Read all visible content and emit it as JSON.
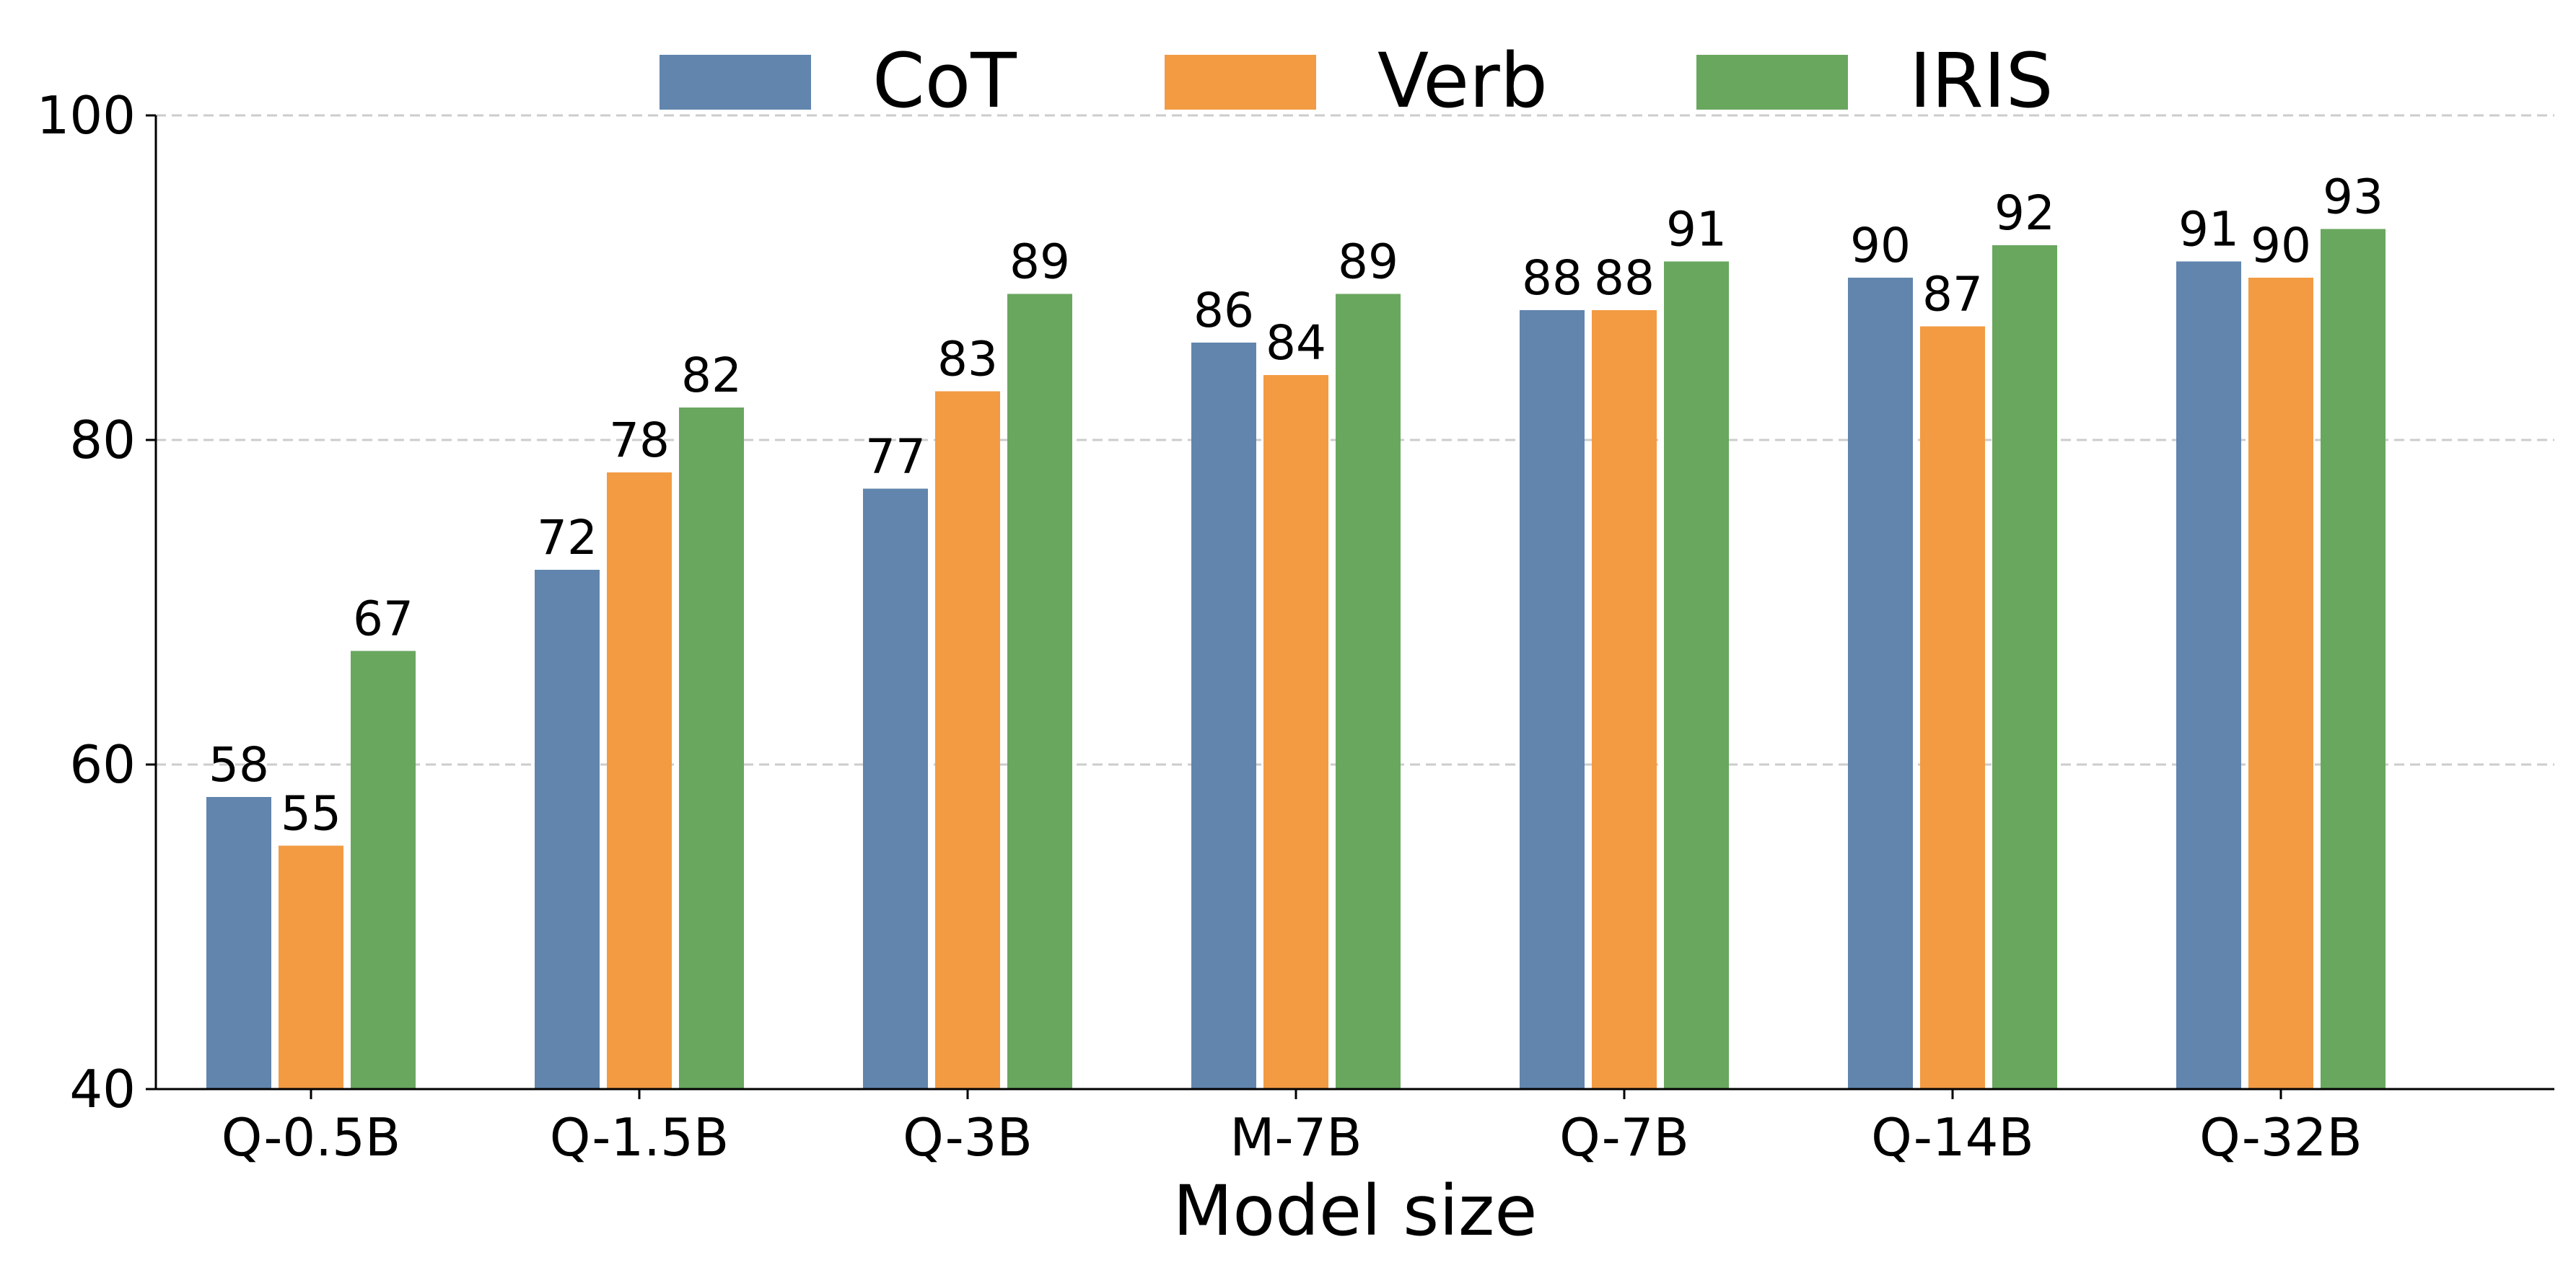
{
  "chart_data": {
    "type": "bar",
    "xlabel": "Model size",
    "ylabel": "",
    "ylim": [
      40,
      100
    ],
    "yticks": [
      40,
      60,
      80,
      100
    ],
    "grid": "horizontal dashed",
    "legend_position": "top-center",
    "categories": [
      "Q-0.5B",
      "Q-1.5B",
      "Q-3B",
      "M-7B",
      "Q-7B",
      "Q-14B",
      "Q-32B"
    ],
    "series": [
      {
        "name": "CoT",
        "color": "#6185AD",
        "values": [
          58,
          72,
          77,
          86,
          88,
          90,
          91
        ]
      },
      {
        "name": "Verb",
        "color": "#F29B43",
        "values": [
          55,
          78,
          83,
          84,
          88,
          87,
          90
        ]
      },
      {
        "name": "IRIS",
        "color": "#69A75F",
        "values": [
          67,
          82,
          89,
          89,
          91,
          92,
          93
        ]
      }
    ]
  }
}
